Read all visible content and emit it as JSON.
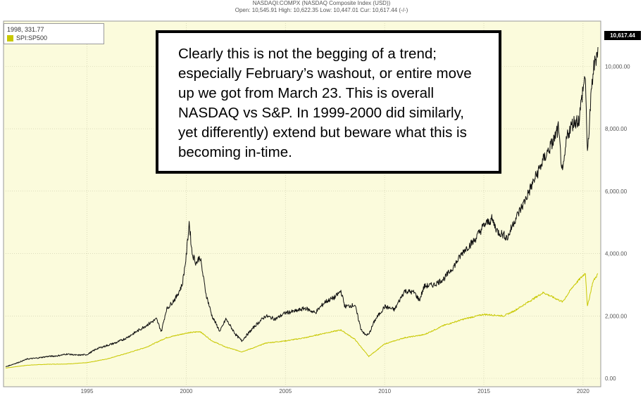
{
  "header": {
    "title": "NASDAQI:COMPX (NASDAQ Composite Index (USD))",
    "ohlc": "Open: 10,545.91 High: 10,622.35 Low: 10,447.01 Cur: 10,617.44 (-/-)"
  },
  "legend": {
    "readout": "1998, 331.77",
    "series_label": "SPI:SP500",
    "series_color": "#c8c800"
  },
  "annotation": {
    "text": "Clearly this is not the begging of a trend; especially February’s washout, or entire move up we got from March 23. This is overall NASDAQ vs S&P. In 1999-2000 did similarly, yet differently) extend but beware what this is becoming in-time."
  },
  "current_tag": "10,617.44",
  "chart_data": {
    "type": "line",
    "title": "NASDAQI:COMPX (NASDAQ Composite Index (USD))",
    "ylim": [
      0,
      11000
    ],
    "xlim": [
      1990.9,
      2020.75
    ],
    "yticks": [
      0,
      2000,
      4000,
      6000,
      8000,
      10000
    ],
    "ytick_labels": [
      "0.00",
      "2,000.00",
      "4,000.00",
      "6,000.00",
      "8,000.00",
      "10,000.00"
    ],
    "xticks": [
      1995,
      2000,
      2005,
      2010,
      2015,
      2020
    ],
    "grid": true,
    "series": [
      {
        "name": "NASDAQI:COMPX",
        "color": "#111111",
        "x": [
          1990.9,
          1991.5,
          1992,
          1992.5,
          1993,
          1993.5,
          1994,
          1994.5,
          1995,
          1995.5,
          1996,
          1996.5,
          1997,
          1997.5,
          1998,
          1998.5,
          1998.75,
          1999,
          1999.5,
          1999.8,
          2000,
          2000.15,
          2000.3,
          2000.5,
          2000.7,
          2001,
          2001.3,
          2001.7,
          2002,
          2002.5,
          2002.8,
          2003,
          2003.5,
          2004,
          2004.5,
          2005,
          2005.5,
          2006,
          2006.5,
          2007,
          2007.5,
          2007.8,
          2008,
          2008.5,
          2008.8,
          2009,
          2009.2,
          2009.5,
          2010,
          2010.5,
          2011,
          2011.5,
          2011.75,
          2012,
          2012.5,
          2013,
          2013.5,
          2014,
          2014.5,
          2015,
          2015.4,
          2015.7,
          2016,
          2016.2,
          2016.5,
          2017,
          2017.5,
          2018,
          2018.5,
          2018.75,
          2018.97,
          2019.2,
          2019.5,
          2019.8,
          2020,
          2020.12,
          2020.22,
          2020.35,
          2020.5,
          2020.75
        ],
        "y": [
          370,
          500,
          620,
          650,
          700,
          720,
          780,
          740,
          760,
          950,
          1050,
          1150,
          1300,
          1500,
          1700,
          1900,
          1500,
          2200,
          2600,
          3000,
          3900,
          5000,
          4000,
          3700,
          3900,
          2700,
          2000,
          1500,
          1900,
          1400,
          1200,
          1350,
          1700,
          2000,
          1900,
          2100,
          2150,
          2250,
          2100,
          2450,
          2600,
          2800,
          2300,
          2350,
          1600,
          1400,
          1400,
          1850,
          2300,
          2200,
          2800,
          2750,
          2500,
          2950,
          3000,
          3200,
          3600,
          4100,
          4400,
          4900,
          5100,
          4700,
          4600,
          4500,
          5000,
          5600,
          6300,
          7000,
          7600,
          8000,
          6500,
          7800,
          8200,
          8300,
          9300,
          9700,
          7100,
          8500,
          9800,
          10617
        ]
      },
      {
        "name": "SPI:SP500",
        "color": "#c8c800",
        "x": [
          1990.9,
          1991.5,
          1992,
          1993,
          1994,
          1995,
          1996,
          1997,
          1998,
          1999,
          2000,
          2000.7,
          2001.3,
          2002,
          2002.8,
          2003.5,
          2004,
          2005,
          2006,
          2007,
          2007.8,
          2008.5,
          2009.2,
          2010,
          2011,
          2012,
          2013,
          2014,
          2015,
          2016,
          2016.5,
          2017,
          2018,
          2018.97,
          2019.5,
          2020.12,
          2020.22,
          2020.5,
          2020.75
        ],
        "y": [
          330,
          380,
          420,
          450,
          460,
          500,
          620,
          800,
          1000,
          1300,
          1450,
          1500,
          1200,
          1000,
          850,
          1000,
          1130,
          1200,
          1300,
          1450,
          1550,
          1250,
          700,
          1100,
          1300,
          1400,
          1700,
          1900,
          2050,
          2000,
          2150,
          2350,
          2750,
          2450,
          2950,
          3380,
          2300,
          3100,
          3350
        ]
      }
    ]
  }
}
